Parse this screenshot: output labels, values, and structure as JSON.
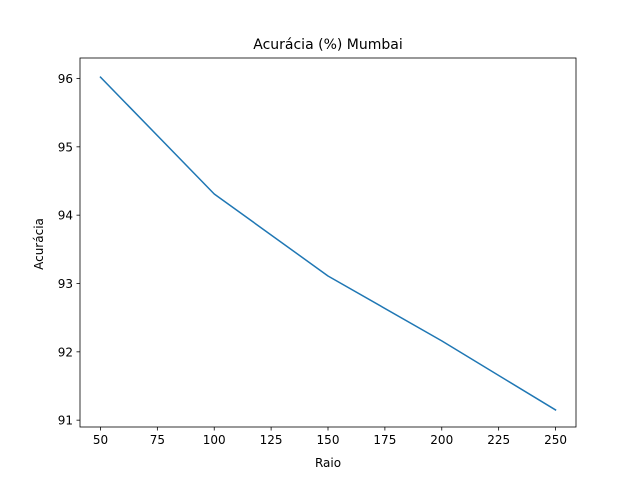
{
  "chart_data": {
    "type": "line",
    "title": "Acurácia (%) Mumbai",
    "xlabel": "Raio",
    "ylabel": "Acurácia",
    "xlim": [
      41,
      259
    ],
    "ylim": [
      90.9,
      96.3
    ],
    "xticks": [
      50,
      75,
      100,
      125,
      150,
      175,
      200,
      225,
      250
    ],
    "yticks": [
      91,
      92,
      93,
      94,
      95,
      96
    ],
    "x": [
      50,
      100,
      150,
      200,
      250
    ],
    "series": [
      {
        "color": "#1f77b4",
        "values": [
          96.02,
          94.31,
          93.11,
          92.16,
          91.15
        ]
      }
    ],
    "grid": false,
    "legend": "none"
  }
}
